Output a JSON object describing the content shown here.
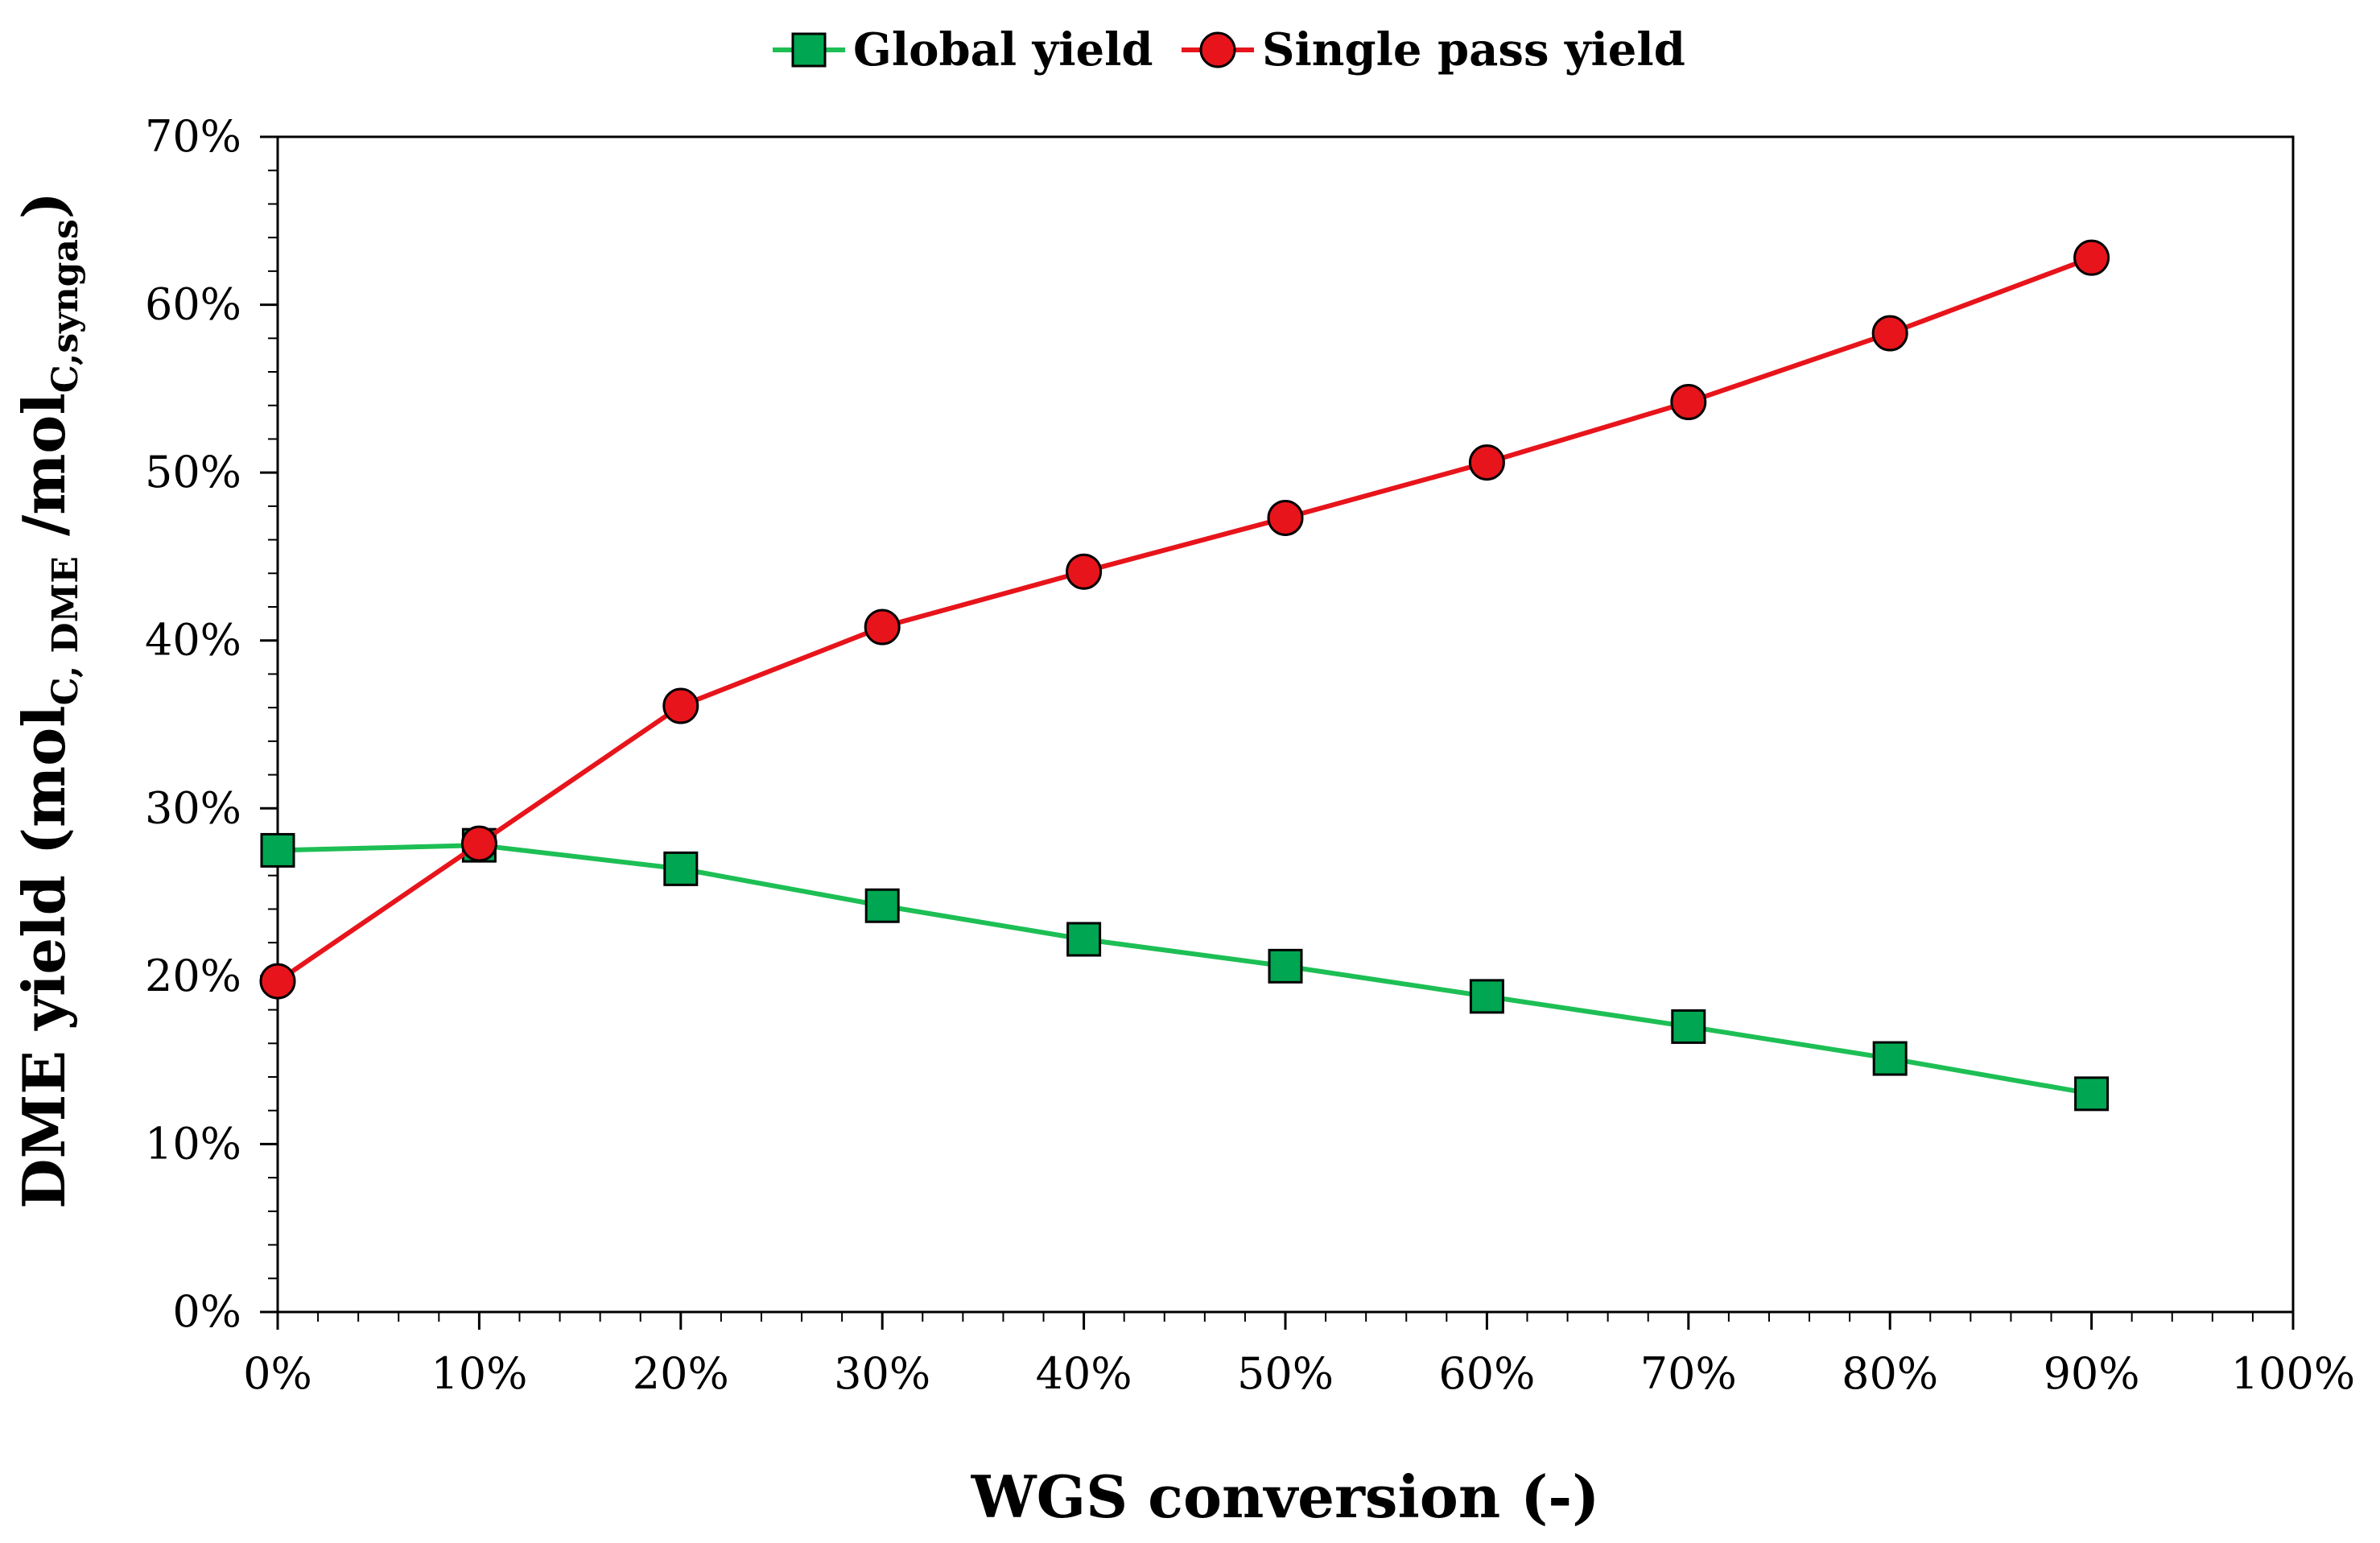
{
  "chart_data": {
    "type": "line",
    "title": "",
    "x": [
      0,
      10,
      20,
      30,
      40,
      50,
      60,
      70,
      80,
      90
    ],
    "xlabel": "WGS conversion (-)",
    "ylabel": {
      "prefix": "DME yield (mol",
      "sub1": "C, DME",
      "mid": " /mol",
      "sub2": "C,syngas",
      "suffix": ")"
    },
    "xlim": [
      0,
      100
    ],
    "ylim": [
      0,
      70
    ],
    "x_ticks": [
      "0%",
      "10%",
      "20%",
      "30%",
      "40%",
      "50%",
      "60%",
      "70%",
      "80%",
      "90%",
      "100%"
    ],
    "y_ticks": [
      "0%",
      "10%",
      "20%",
      "30%",
      "40%",
      "50%",
      "60%",
      "70%"
    ],
    "grid": false,
    "legend_position": "top-center",
    "series": [
      {
        "name": "Global yield",
        "color": "#00a651",
        "line_color": "#1dbf55",
        "marker": "square",
        "values": [
          27.5,
          27.8,
          26.4,
          24.2,
          22.2,
          20.6,
          18.8,
          17.0,
          15.1,
          13.0
        ]
      },
      {
        "name": "Single pass yield",
        "color": "#e8141b",
        "line_color": "#e8141b",
        "marker": "circle",
        "values": [
          19.7,
          27.9,
          36.1,
          40.8,
          44.1,
          47.3,
          50.6,
          54.2,
          58.3,
          62.8
        ]
      }
    ]
  }
}
